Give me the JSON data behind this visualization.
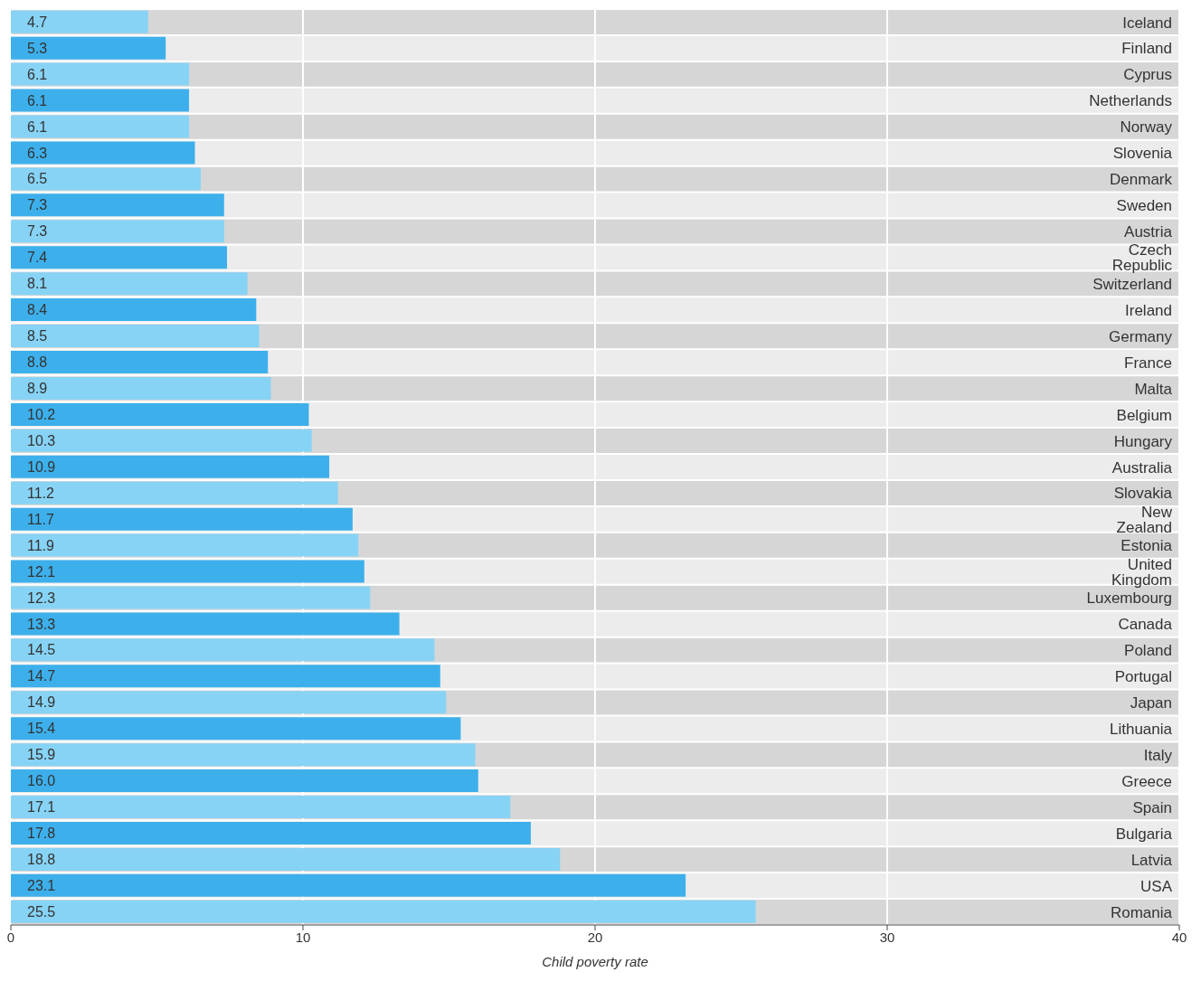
{
  "chart_data": {
    "type": "bar",
    "orientation": "horizontal",
    "xlabel": "Child poverty rate",
    "categories": [
      "Iceland",
      "Finland",
      "Cyprus",
      "Netherlands",
      "Norway",
      "Slovenia",
      "Denmark",
      "Sweden",
      "Austria",
      "Czech Republic",
      "Switzerland",
      "Ireland",
      "Germany",
      "France",
      "Malta",
      "Belgium",
      "Hungary",
      "Australia",
      "Slovakia",
      "New Zealand",
      "Estonia",
      "United Kingdom",
      "Luxembourg",
      "Canada",
      "Poland",
      "Portugal",
      "Japan",
      "Lithuania",
      "Italy",
      "Greece",
      "Spain",
      "Bulgaria",
      "Latvia",
      "USA",
      "Romania"
    ],
    "values": [
      4.7,
      5.3,
      6.1,
      6.1,
      6.1,
      6.3,
      6.5,
      7.3,
      7.3,
      7.4,
      8.1,
      8.4,
      8.5,
      8.8,
      8.9,
      10.2,
      10.3,
      10.9,
      11.2,
      11.7,
      11.9,
      12.1,
      12.3,
      13.3,
      14.5,
      14.7,
      14.9,
      15.4,
      15.9,
      16.0,
      17.1,
      17.8,
      18.8,
      23.1,
      25.5
    ],
    "value_labels": [
      "4.7",
      "5.3",
      "6.1",
      "6.1",
      "6.1",
      "6.3",
      "6.5",
      "7.3",
      "7.3",
      "7.4",
      "8.1",
      "8.4",
      "8.5",
      "8.8",
      "8.9",
      "10.2",
      "10.3",
      "10.9",
      "11.2",
      "11.7",
      "11.9",
      "12.1",
      "12.3",
      "13.3",
      "14.5",
      "14.7",
      "14.9",
      "15.4",
      "15.9",
      "16.0",
      "17.1",
      "17.8",
      "18.8",
      "23.1",
      "25.5"
    ],
    "colors": [
      "#87d3f5",
      "#3db0ec",
      "#87d3f5",
      "#3db0ec",
      "#87d3f5",
      "#3db0ec",
      "#87d3f5",
      "#3db0ec",
      "#87d3f5",
      "#3db0ec",
      "#87d3f5",
      "#3db0ec",
      "#87d3f5",
      "#3db0ec",
      "#87d3f5",
      "#3db0ec",
      "#87d3f5",
      "#3db0ec",
      "#87d3f5",
      "#3db0ec",
      "#87d3f5",
      "#3db0ec",
      "#87d3f5",
      "#3db0ec",
      "#87d3f5",
      "#3db0ec",
      "#87d3f5",
      "#3db0ec",
      "#87d3f5",
      "#3db0ec",
      "#87d3f5",
      "#3db0ec",
      "#87d3f5",
      "#3db0ec",
      "#87d3f5"
    ],
    "xlim": [
      0,
      40
    ],
    "xticks": [
      0,
      10,
      20,
      30,
      40
    ],
    "grid": "x",
    "legend": false
  }
}
